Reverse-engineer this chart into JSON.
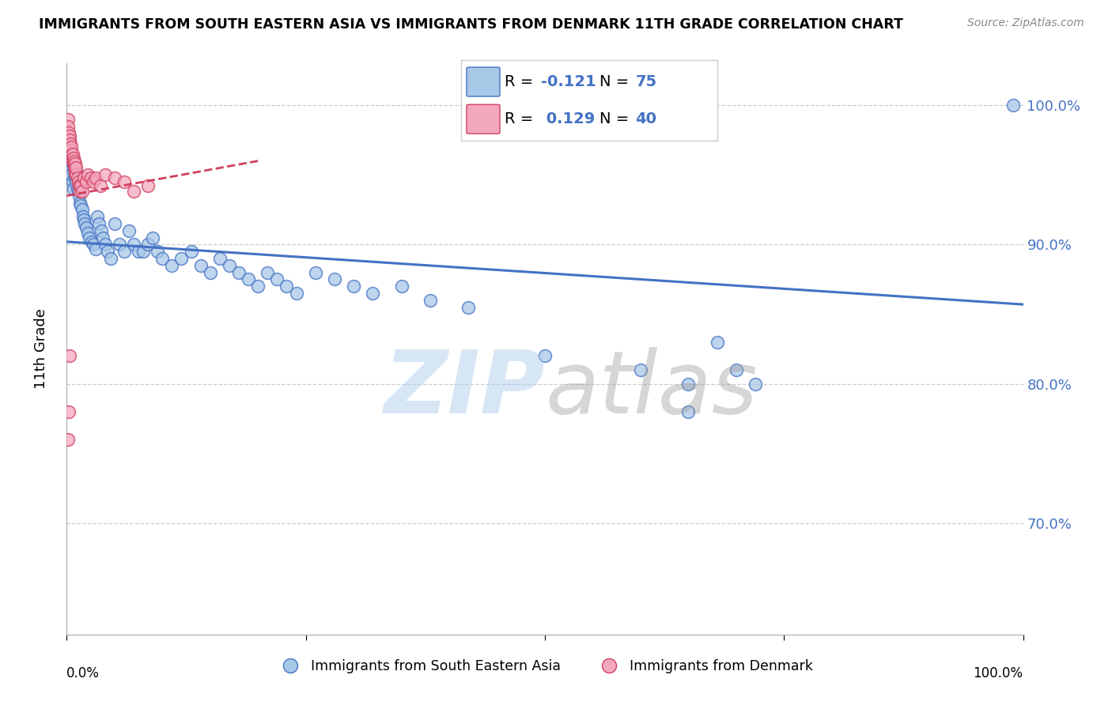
{
  "title": "IMMIGRANTS FROM SOUTH EASTERN ASIA VS IMMIGRANTS FROM DENMARK 11TH GRADE CORRELATION CHART",
  "source": "Source: ZipAtlas.com",
  "ylabel": "11th Grade",
  "legend_blue_r": "-0.121",
  "legend_blue_n": "75",
  "legend_pink_r": "0.129",
  "legend_pink_n": "40",
  "blue_color": "#a8c8e8",
  "pink_color": "#f4a8be",
  "blue_line_color": "#4472c4",
  "pink_line_color": "#d04060",
  "xlim": [
    0.0,
    1.0
  ],
  "ylim": [
    0.62,
    1.03
  ],
  "yticks": [
    0.7,
    0.8,
    0.9,
    1.0
  ],
  "ytick_labels": [
    "70.0%",
    "80.0%",
    "90.0%",
    "100.0%"
  ],
  "blue_scatter_x": [
    0.001,
    0.002,
    0.003,
    0.004,
    0.005,
    0.005,
    0.006,
    0.007,
    0.007,
    0.008,
    0.009,
    0.01,
    0.01,
    0.011,
    0.012,
    0.013,
    0.014,
    0.015,
    0.016,
    0.017,
    0.018,
    0.019,
    0.02,
    0.022,
    0.024,
    0.026,
    0.028,
    0.03,
    0.032,
    0.034,
    0.036,
    0.038,
    0.04,
    0.043,
    0.046,
    0.05,
    0.055,
    0.06,
    0.065,
    0.07,
    0.075,
    0.08,
    0.085,
    0.09,
    0.095,
    0.1,
    0.11,
    0.12,
    0.13,
    0.14,
    0.15,
    0.16,
    0.17,
    0.18,
    0.19,
    0.2,
    0.21,
    0.22,
    0.23,
    0.24,
    0.26,
    0.28,
    0.3,
    0.32,
    0.35,
    0.38,
    0.42,
    0.5,
    0.6,
    0.65,
    0.68,
    0.7,
    0.72,
    0.99,
    0.65
  ],
  "blue_scatter_y": [
    0.97,
    0.965,
    0.96,
    0.955,
    0.95,
    0.96,
    0.945,
    0.94,
    0.955,
    0.95,
    0.948,
    0.945,
    0.952,
    0.94,
    0.938,
    0.935,
    0.93,
    0.928,
    0.925,
    0.92,
    0.918,
    0.915,
    0.912,
    0.908,
    0.905,
    0.902,
    0.9,
    0.897,
    0.92,
    0.915,
    0.91,
    0.905,
    0.9,
    0.895,
    0.89,
    0.915,
    0.9,
    0.895,
    0.91,
    0.9,
    0.895,
    0.895,
    0.9,
    0.905,
    0.895,
    0.89,
    0.885,
    0.89,
    0.895,
    0.885,
    0.88,
    0.89,
    0.885,
    0.88,
    0.875,
    0.87,
    0.88,
    0.875,
    0.87,
    0.865,
    0.88,
    0.875,
    0.87,
    0.865,
    0.87,
    0.86,
    0.855,
    0.82,
    0.81,
    0.8,
    0.83,
    0.81,
    0.8,
    1.0,
    0.78
  ],
  "pink_scatter_x": [
    0.001,
    0.001,
    0.002,
    0.003,
    0.003,
    0.004,
    0.004,
    0.005,
    0.005,
    0.006,
    0.006,
    0.007,
    0.007,
    0.008,
    0.008,
    0.009,
    0.009,
    0.01,
    0.01,
    0.011,
    0.012,
    0.013,
    0.014,
    0.015,
    0.016,
    0.018,
    0.02,
    0.022,
    0.025,
    0.028,
    0.03,
    0.035,
    0.04,
    0.05,
    0.06,
    0.07,
    0.085,
    0.001,
    0.003,
    0.002
  ],
  "pink_scatter_y": [
    0.99,
    0.985,
    0.98,
    0.978,
    0.975,
    0.972,
    0.968,
    0.965,
    0.97,
    0.96,
    0.965,
    0.958,
    0.962,
    0.955,
    0.96,
    0.952,
    0.958,
    0.95,
    0.955,
    0.948,
    0.945,
    0.942,
    0.938,
    0.942,
    0.938,
    0.948,
    0.945,
    0.95,
    0.948,
    0.945,
    0.948,
    0.942,
    0.95,
    0.948,
    0.945,
    0.938,
    0.942,
    0.76,
    0.82,
    0.78
  ],
  "blue_trendline_x": [
    0.0,
    1.0
  ],
  "blue_trendline_y": [
    0.902,
    0.857
  ],
  "pink_trendline_x": [
    0.0,
    0.2
  ],
  "pink_trendline_y": [
    0.935,
    0.96
  ]
}
